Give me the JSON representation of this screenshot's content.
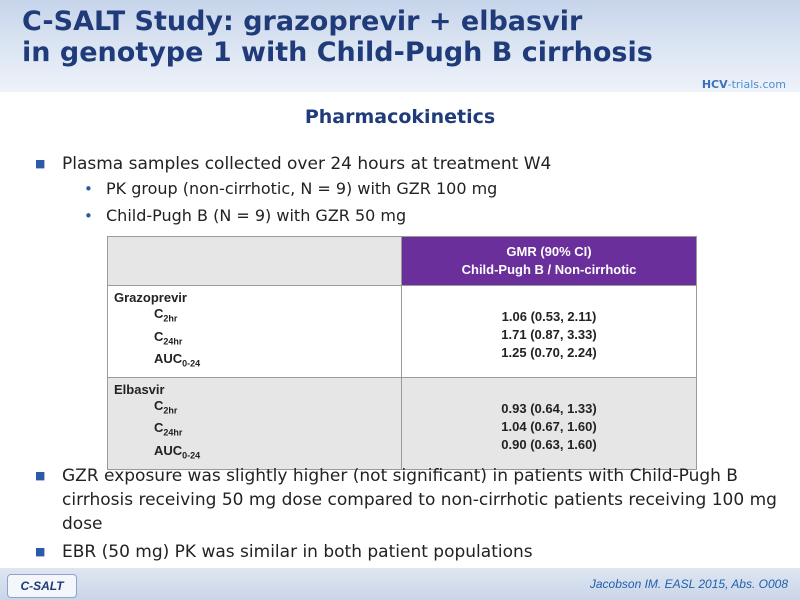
{
  "header": {
    "title_line1": "C-SALT Study: grazoprevir + elbasvir",
    "title_line2": "in genotype 1 with Child-Pugh B cirrhosis",
    "logo_hcv": "HCV",
    "logo_rest": "-trials.com"
  },
  "subtitle": "Pharmacokinetics",
  "bullets": {
    "b1": "Plasma samples collected over 24 hours at treatment W4",
    "sub1": "PK group (non-cirrhotic, N = 9) with GZR 100 mg",
    "sub2": "Child-Pugh B (N = 9) with GZR 50 mg",
    "b2": "GZR exposure was slightly higher (not significant) in patients with Child-Pugh B cirrhosis receiving 50 mg dose compared to non-cirrhotic patients receiving 100 mg dose",
    "b3": "EBR (50 mg) PK was similar in both patient populations"
  },
  "table": {
    "header_line1": "GMR (90% CI)",
    "header_line2": "Child-Pugh  B / Non-cirrhotic",
    "groups": [
      {
        "drug": "Grazoprevir",
        "labels": [
          {
            "base": "C",
            "sub": "2hr"
          },
          {
            "base": "C",
            "sub": "24hr"
          },
          {
            "base": "AUC",
            "sub": "0-24"
          }
        ],
        "values": [
          "1.06 (0.53, 2.11)",
          "1.71 (0.87, 3.33)",
          "1.25 (0.70, 2.24)"
        ]
      },
      {
        "drug": "Elbasvir",
        "labels": [
          {
            "base": "C",
            "sub": "2hr"
          },
          {
            "base": "C",
            "sub": "24hr"
          },
          {
            "base": "AUC",
            "sub": "0-24"
          }
        ],
        "values": [
          "0.93 (0.64, 1.33)",
          "1.04 (0.67, 1.60)",
          "0.90 (0.63, 1.60)"
        ]
      }
    ]
  },
  "footer": {
    "badge": "C-SALT",
    "citation": "Jacobson IM. EASL 2015, Abs. O008"
  },
  "colors": {
    "title": "#1f3b7a",
    "table_header_bg": "#6a2f9a",
    "bullet_mark": "#2a5aa8"
  }
}
